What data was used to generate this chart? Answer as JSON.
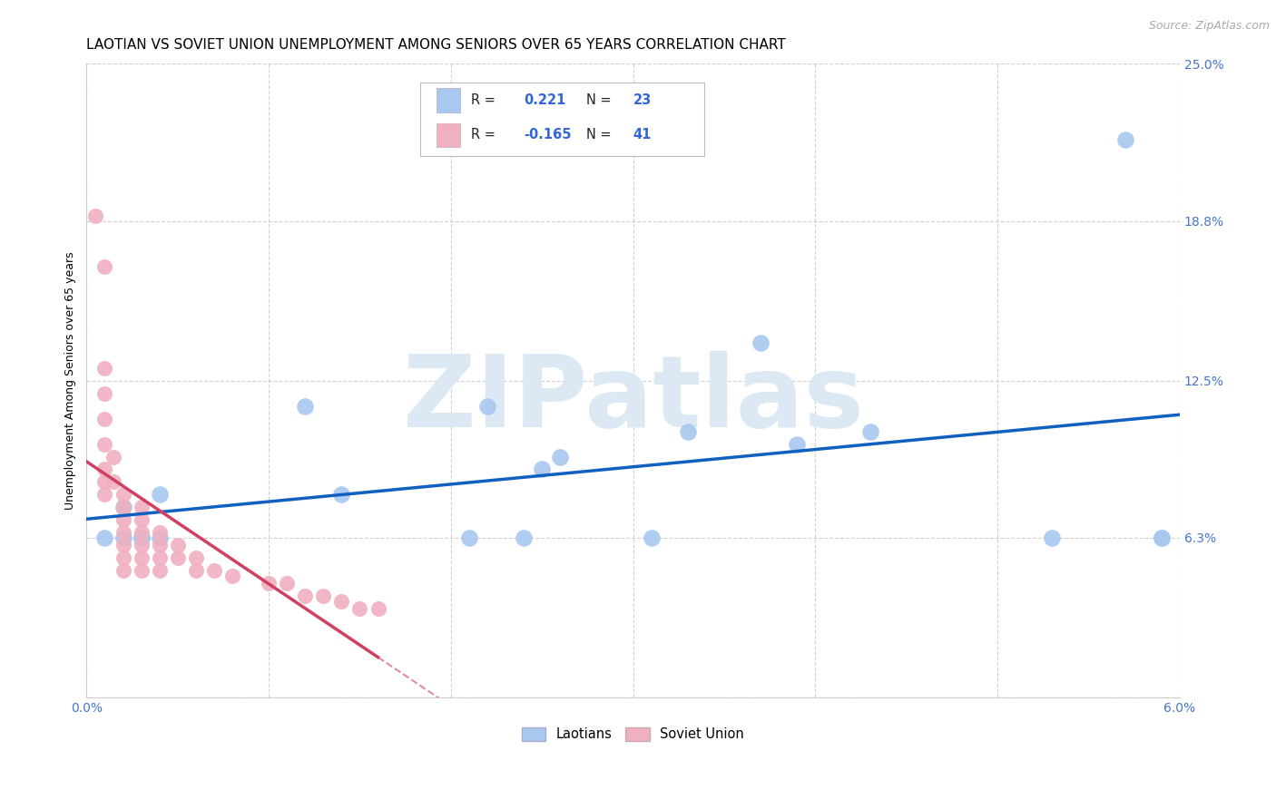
{
  "title": "LAOTIAN VS SOVIET UNION UNEMPLOYMENT AMONG SENIORS OVER 65 YEARS CORRELATION CHART",
  "source": "Source: ZipAtlas.com",
  "ylabel": "Unemployment Among Seniors over 65 years",
  "xlim": [
    0.0,
    0.06
  ],
  "ylim": [
    0.0,
    0.25
  ],
  "xticks": [
    0.0,
    0.01,
    0.02,
    0.03,
    0.04,
    0.05,
    0.06
  ],
  "xticklabels": [
    "0.0%",
    "",
    "",
    "",
    "",
    "",
    "6.0%"
  ],
  "yticks": [
    0.0,
    0.063,
    0.125,
    0.188,
    0.25
  ],
  "yticklabels": [
    "",
    "6.3%",
    "12.5%",
    "18.8%",
    "25.0%"
  ],
  "laotians_x": [
    0.001,
    0.002,
    0.002,
    0.003,
    0.003,
    0.004,
    0.004,
    0.012,
    0.014,
    0.021,
    0.022,
    0.024,
    0.025,
    0.026,
    0.031,
    0.033,
    0.037,
    0.039,
    0.043,
    0.053,
    0.057,
    0.059,
    0.059
  ],
  "laotians_y": [
    0.063,
    0.063,
    0.075,
    0.063,
    0.063,
    0.063,
    0.08,
    0.115,
    0.08,
    0.063,
    0.115,
    0.063,
    0.09,
    0.095,
    0.063,
    0.105,
    0.14,
    0.1,
    0.105,
    0.063,
    0.22,
    0.063,
    0.063
  ],
  "soviet_x": [
    0.0005,
    0.001,
    0.001,
    0.001,
    0.001,
    0.001,
    0.001,
    0.001,
    0.001,
    0.0015,
    0.0015,
    0.002,
    0.002,
    0.002,
    0.002,
    0.002,
    0.002,
    0.002,
    0.003,
    0.003,
    0.003,
    0.003,
    0.003,
    0.003,
    0.004,
    0.004,
    0.004,
    0.004,
    0.005,
    0.005,
    0.006,
    0.006,
    0.007,
    0.008,
    0.01,
    0.011,
    0.012,
    0.013,
    0.014,
    0.015,
    0.016
  ],
  "soviet_y": [
    0.19,
    0.17,
    0.13,
    0.12,
    0.11,
    0.1,
    0.09,
    0.085,
    0.08,
    0.095,
    0.085,
    0.08,
    0.075,
    0.07,
    0.065,
    0.06,
    0.055,
    0.05,
    0.075,
    0.07,
    0.065,
    0.06,
    0.055,
    0.05,
    0.065,
    0.06,
    0.055,
    0.05,
    0.06,
    0.055,
    0.055,
    0.05,
    0.05,
    0.048,
    0.045,
    0.045,
    0.04,
    0.04,
    0.038,
    0.035,
    0.035
  ],
  "laotians_R": "0.221",
  "laotians_N": "23",
  "soviet_R": "-0.165",
  "soviet_N": "41",
  "blue_color": "#a8c8f0",
  "pink_color": "#f0b0c0",
  "blue_line_color": "#1060c0",
  "pink_line_color": "#d04060",
  "watermark_text": "ZIPatlas",
  "watermark_color": "#dde8f5",
  "legend_label1": "Laotians",
  "legend_label2": "Soviet Union",
  "title_fontsize": 11,
  "axis_label_fontsize": 9,
  "tick_fontsize": 10,
  "blue_scatter_size": 180,
  "pink_scatter_size": 150
}
